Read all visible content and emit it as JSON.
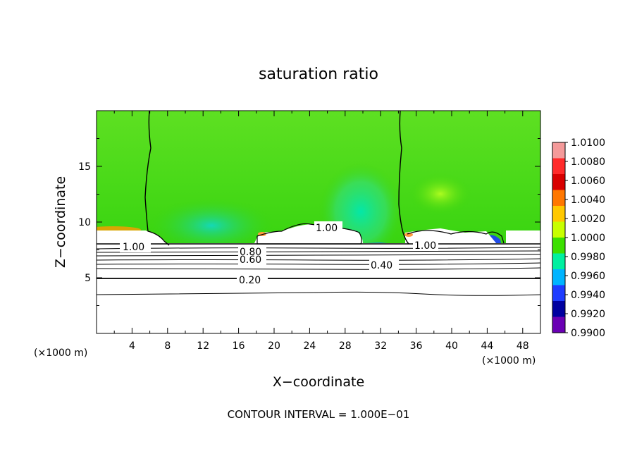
{
  "chart_data": {
    "type": "heatmap",
    "title": "saturation ratio",
    "xlabel": "X−coordinate",
    "ylabel": "Z−coordinate",
    "x_unit_left": "(×1000 m)",
    "x_unit_right": "(×1000 m)",
    "xlim": [
      0,
      50
    ],
    "ylim": [
      0,
      20
    ],
    "x_ticks": [
      "4",
      "8",
      "12",
      "16",
      "20",
      "24",
      "28",
      "32",
      "36",
      "40",
      "44",
      "48"
    ],
    "x_tick_values": [
      4,
      8,
      12,
      16,
      20,
      24,
      28,
      32,
      36,
      40,
      44,
      48
    ],
    "y_ticks": [
      "5",
      "10",
      "15"
    ],
    "y_tick_values": [
      5,
      10,
      15
    ],
    "grid": false,
    "colorbar": {
      "placement": "right",
      "labels": [
        "1.0100",
        "1.0080",
        "1.0060",
        "1.0040",
        "1.0020",
        "1.0000",
        "0.9980",
        "0.9960",
        "0.9940",
        "0.9920",
        "0.9900"
      ],
      "colors": [
        "#f49a9a",
        "#ff2a2a",
        "#d80000",
        "#ff7700",
        "#ffc800",
        "#c8ff00",
        "#3ce000",
        "#00f0a0",
        "#00b4ff",
        "#1e3cff",
        "#0000a0",
        "#6a00b4"
      ]
    },
    "field_description_colors": {
      "background": "#3ad40a",
      "upper_light": "#5ae020"
    },
    "contours": [
      {
        "label": "1.00",
        "label_x": 20.0,
        "label_z": 9.4
      },
      {
        "label": "1.00",
        "label_x": 4.8,
        "label_z": 7.9
      },
      {
        "label": "1.00",
        "label_x": 37.5,
        "label_z": 7.9
      },
      {
        "label": "0.80",
        "label_x": 18.2,
        "label_z": 7.3
      },
      {
        "label": "0.60",
        "label_x": 18.2,
        "label_z": 6.8
      },
      {
        "label": "0.40",
        "label_x": 33.5,
        "label_z": 6.0
      },
      {
        "label": "0.20",
        "label_x": 17.8,
        "label_z": 4.8
      }
    ],
    "right_contour_label": "1.00",
    "footer": "CONTOUR INTERVAL = 1.000E−01"
  }
}
